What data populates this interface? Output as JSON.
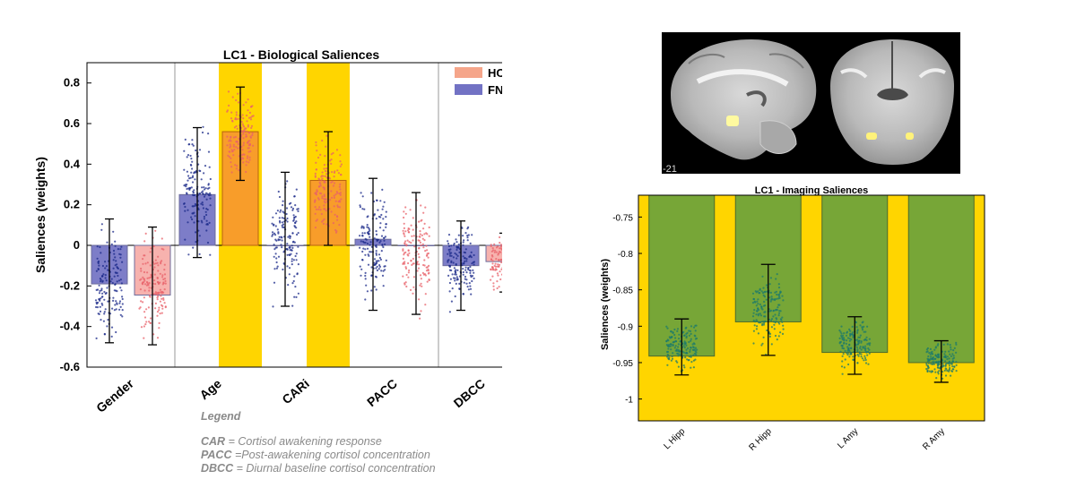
{
  "left_chart": {
    "title": "LC1 - Biological Saliences",
    "ylabel": "Saliences (weights)",
    "y_ticks": [
      "0.8",
      "0.6",
      "0.4",
      "0.2",
      "0",
      "-0.2",
      "-0.4",
      "-0.6"
    ],
    "legend": [
      {
        "name": "HC",
        "color": "#f5a58a"
      },
      {
        "name": "FND",
        "color": "#7272c4"
      }
    ],
    "x_labels": [
      "Gender",
      "Age",
      "CARi",
      "PACC",
      "DBCC"
    ]
  },
  "right_chart": {
    "title": "LC1 - Imaging Saliences",
    "ylabel": "Saliences (weights)",
    "y_ticks": [
      "-0.75",
      "-0.8",
      "-0.85",
      "-0.9",
      "-0.95",
      "-1"
    ],
    "x_labels": [
      "L Hipp",
      "R Hipp",
      "L Amy",
      "R Amy"
    ]
  },
  "mri": {
    "slice_label": "-21"
  },
  "legend_text": {
    "title": "Legend",
    "lines": [
      {
        "abbr": "CAR",
        "text": " = Cortisol awakening response"
      },
      {
        "abbr": "PACC",
        "text": " =Post-awakening cortisol concentration"
      },
      {
        "abbr": "DBCC",
        "text": " = Diurnal baseline cortisol concentration"
      }
    ]
  },
  "chart_data": [
    {
      "type": "bar",
      "title": "LC1 - Biological Saliences",
      "ylabel": "Saliences (weights)",
      "ylim": [
        -0.6,
        0.9
      ],
      "categories": [
        "Gender",
        "Age",
        "CARi",
        "PACC",
        "DBCC"
      ],
      "highlighted_groups": [
        {
          "category": "Age",
          "group": "HC"
        },
        {
          "category": "CARi",
          "group": "HC"
        }
      ],
      "series": [
        {
          "name": "FND",
          "color": "#7272c4",
          "values": [
            -0.19,
            0.25,
            0.0,
            0.03,
            -0.1
          ],
          "err_low": [
            -0.48,
            -0.06,
            -0.3,
            -0.32,
            -0.32
          ],
          "err_high": [
            0.13,
            0.58,
            0.36,
            0.33,
            0.12
          ]
        },
        {
          "name": "HC",
          "color": "#f5a58a",
          "values": [
            -0.245,
            0.56,
            0.32,
            0.0,
            -0.08
          ],
          "err_low": [
            -0.49,
            0.32,
            0.0,
            -0.34,
            -0.23
          ],
          "err_high": [
            0.09,
            0.78,
            0.56,
            0.26,
            0.06
          ]
        }
      ],
      "legend_position": "top-right",
      "grid": false
    },
    {
      "type": "bar",
      "title": "LC1 - Imaging Saliences",
      "ylabel": "Saliences (weights)",
      "ylim": [
        -1.03,
        -0.72
      ],
      "categories": [
        "L Hipp",
        "R Hipp",
        "L Amy",
        "R Amy"
      ],
      "values": [
        -0.941,
        -0.894,
        -0.936,
        -0.95
      ],
      "err_low": [
        -0.967,
        -0.94,
        -0.966,
        -0.977
      ],
      "err_high": [
        -0.89,
        -0.815,
        -0.887,
        -0.92
      ],
      "bar_color": "#77a637",
      "background_color": "#ffd500",
      "grid": false
    }
  ]
}
